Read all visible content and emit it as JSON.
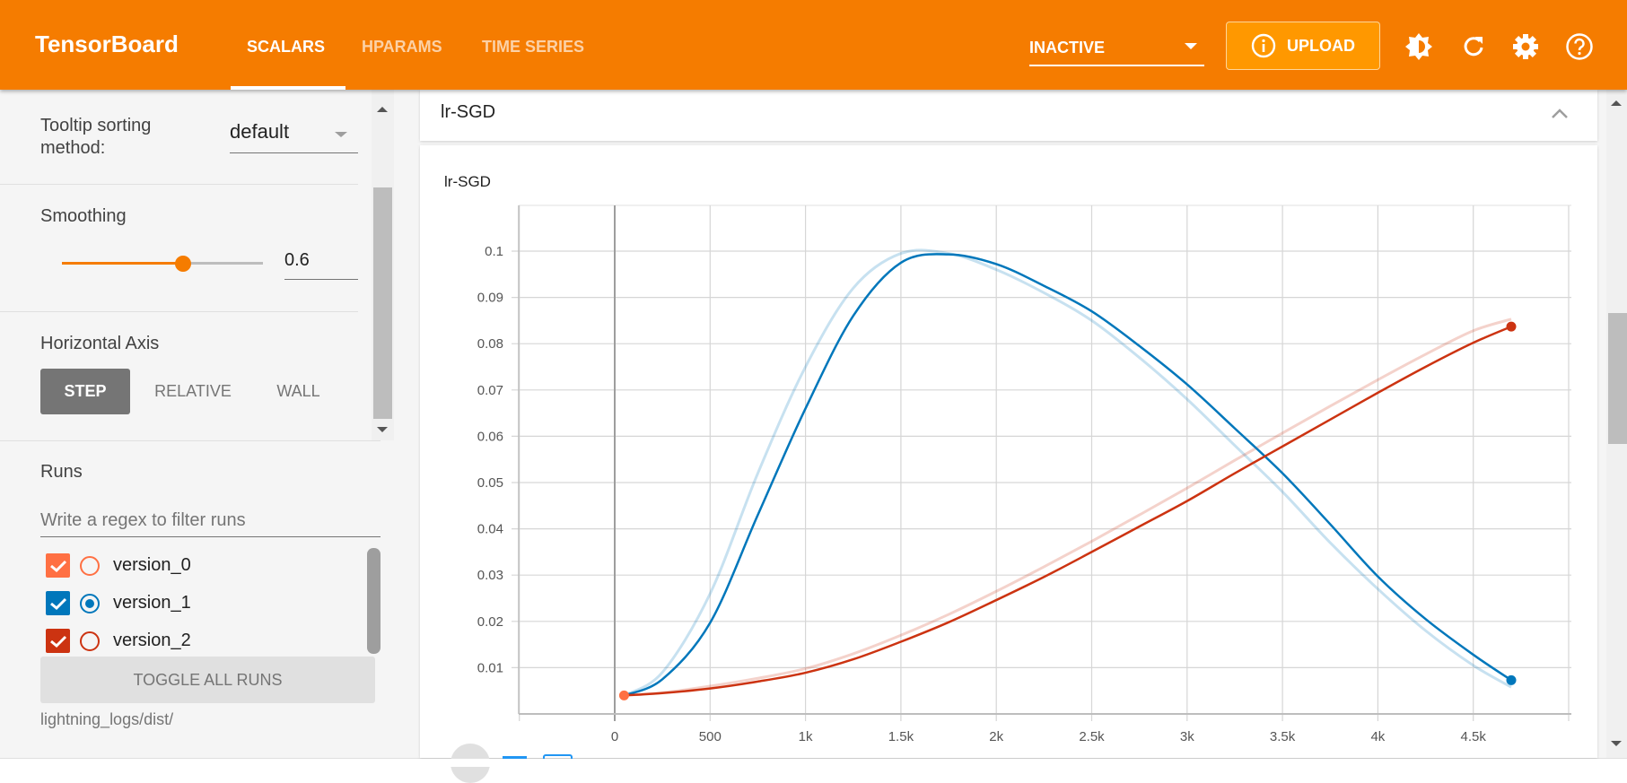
{
  "header": {
    "title": "TensorBoard",
    "tabs": [
      {
        "label": "SCALARS",
        "active": true
      },
      {
        "label": "HPARAMS",
        "active": false
      },
      {
        "label": "TIME SERIES",
        "active": false
      }
    ],
    "reload_status": "INACTIVE",
    "upload_label": "UPLOAD",
    "icons": [
      "info-icon",
      "theme-brightness-icon",
      "refresh-icon",
      "settings-icon",
      "help-icon"
    ],
    "accent": "#f57c00"
  },
  "sidebar": {
    "tooltip_label": "Tooltip sorting method:",
    "tooltip_value": "default",
    "smoothing_label": "Smoothing",
    "smoothing_value": "0.6",
    "smoothing_fraction": 0.6,
    "axis_label": "Horizontal Axis",
    "axis_options": [
      "STEP",
      "RELATIVE",
      "WALL"
    ],
    "axis_selected": "STEP",
    "runs_label": "Runs",
    "runs_filter_placeholder": "Write a regex to filter runs",
    "runs": [
      {
        "name": "version_0",
        "checked": true,
        "selected": false,
        "color": "#ff7043"
      },
      {
        "name": "version_1",
        "checked": true,
        "selected": true,
        "color": "#0077bb"
      },
      {
        "name": "version_2",
        "checked": true,
        "selected": false,
        "color": "#cc3311"
      }
    ],
    "toggle_all_label": "TOGGLE ALL RUNS",
    "logdir": "lightning_logs/dist/"
  },
  "main": {
    "card_title": "lr-SGD"
  },
  "chart_data": {
    "type": "line",
    "title": "lr-SGD",
    "xlabel": "",
    "ylabel": "",
    "xlim": [
      -500,
      5000
    ],
    "ylim": [
      0,
      0.11
    ],
    "x_ticks": [
      "0",
      "500",
      "1k",
      "1.5k",
      "2k",
      "2.5k",
      "3k",
      "3.5k",
      "4k",
      "4.5k"
    ],
    "y_ticks": [
      "0.01",
      "0.02",
      "0.03",
      "0.04",
      "0.05",
      "0.06",
      "0.07",
      "0.08",
      "0.09",
      "0.1"
    ],
    "grid": true,
    "smoothing": 0.6,
    "series": [
      {
        "name": "version_0",
        "color": "#ff7043",
        "x": [
          49
        ],
        "raw": [
          0.004
        ],
        "smoothed": [
          0.004
        ]
      },
      {
        "name": "version_1",
        "color": "#0077bb",
        "x": [
          49,
          250,
          500,
          750,
          1000,
          1250,
          1500,
          1750,
          2000,
          2250,
          2500,
          2750,
          3000,
          3250,
          3500,
          3750,
          4000,
          4250,
          4500,
          4699
        ],
        "raw": [
          0.004,
          0.009,
          0.026,
          0.052,
          0.075,
          0.092,
          0.0995,
          0.0995,
          0.096,
          0.091,
          0.085,
          0.077,
          0.068,
          0.058,
          0.048,
          0.037,
          0.027,
          0.018,
          0.0105,
          0.0058
        ],
        "smoothed": [
          0.004,
          0.0075,
          0.0197,
          0.043,
          0.066,
          0.086,
          0.0975,
          0.0993,
          0.0972,
          0.0925,
          0.087,
          0.0795,
          0.0712,
          0.0617,
          0.052,
          0.041,
          0.0297,
          0.0205,
          0.0128,
          0.0073
        ]
      },
      {
        "name": "version_2",
        "color": "#cc3311",
        "x": [
          49,
          250,
          500,
          750,
          1000,
          1250,
          1500,
          1750,
          2000,
          2250,
          2500,
          2750,
          3000,
          3250,
          3500,
          3750,
          4000,
          4250,
          4500,
          4699
        ],
        "raw": [
          0.004,
          0.0046,
          0.006,
          0.0077,
          0.0098,
          0.013,
          0.017,
          0.0215,
          0.0265,
          0.0318,
          0.0373,
          0.043,
          0.0488,
          0.0548,
          0.0607,
          0.0665,
          0.0722,
          0.0777,
          0.0828,
          0.0853
        ],
        "smoothed": [
          0.004,
          0.0045,
          0.0055,
          0.007,
          0.0089,
          0.0118,
          0.0156,
          0.0198,
          0.0246,
          0.0296,
          0.035,
          0.0405,
          0.046,
          0.052,
          0.0578,
          0.0636,
          0.0694,
          0.075,
          0.0802,
          0.0837
        ]
      }
    ]
  }
}
